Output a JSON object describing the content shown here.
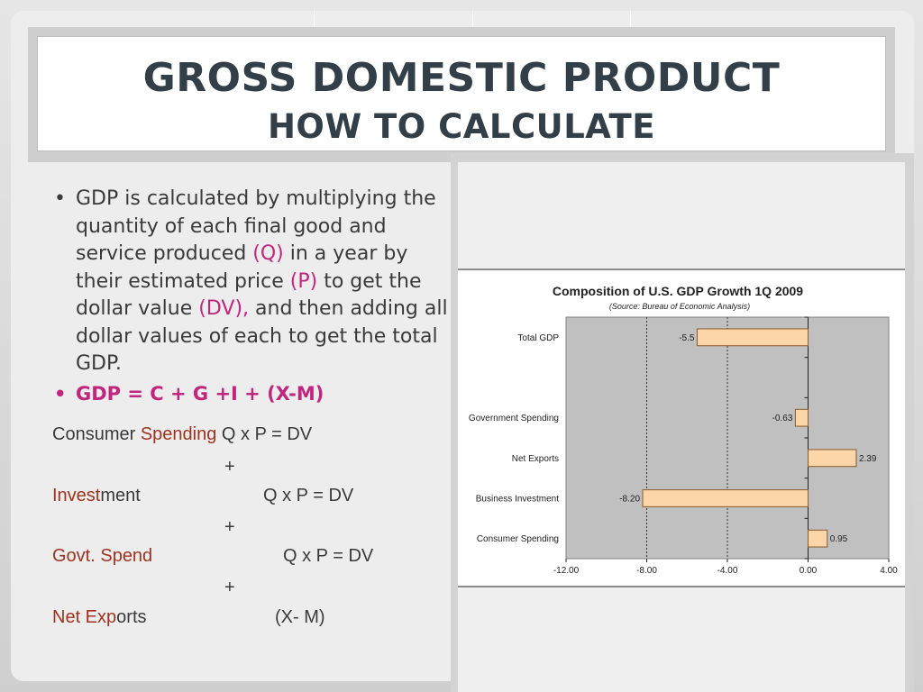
{
  "slide": {
    "title_line1": "GROSS DOMESTIC PRODUCT",
    "title_line2": "HOW TO CALCULATE"
  },
  "text": {
    "bullet1_dot": "•",
    "bullet1_a": "GDP is calculated by multiplying the quantity of each final good and service produced ",
    "bullet1_q": "(Q)",
    "bullet1_b": " in a year by their estimated price ",
    "bullet1_p": "(P)",
    "bullet1_c": " to get the dollar value ",
    "bullet1_dv": "(DV),",
    "bullet1_d": " and then adding all dollar values of each to get the total GDP.",
    "bullet2_dot": "•",
    "formula": "GDP = C + G +I + (X-M)",
    "consumer_a": "Consumer ",
    "consumer_b": "Spending",
    "consumer_eq": " Q x P = DV",
    "plus1": "+",
    "invest_a": "Invest",
    "invest_b": "ment",
    "invest_eq": "Q x P = DV",
    "plus2": "+",
    "govt": "Govt. Spend",
    "govt_eq": "Q x P = DV",
    "plus3": "+",
    "net_a": "Net Exp",
    "net_b": "orts",
    "net_eq": "(X- M)"
  },
  "chart_data": {
    "type": "bar",
    "orientation": "horizontal",
    "title": "Composition of U.S. GDP Growth 1Q 2009",
    "subtitle": "(Source: Bureau of Economic Analysis)",
    "categories": [
      "Total GDP",
      "Government Spending",
      "Net Exports",
      "Business Investment",
      "Consumer Spending"
    ],
    "values": [
      -5.5,
      -0.63,
      2.39,
      -8.2,
      0.95
    ],
    "value_labels": [
      "-5.5",
      "-0.63",
      "2.39",
      "-8.20",
      "0.95"
    ],
    "xlim": [
      -12,
      4
    ],
    "x_ticks": [
      -12,
      -8,
      -4,
      0,
      4
    ],
    "x_tick_labels": [
      "-12.00",
      "-8.00",
      "-4.00",
      "0.00",
      "4.00"
    ],
    "category_positions": [
      0.5,
      2.5,
      3.5,
      4.5,
      5.5
    ],
    "category_slots": 6,
    "gridlines": [
      -8,
      -4
    ],
    "colors": {
      "bar_fill": "#fcd5a8",
      "bar_stroke": "#8a5a2b",
      "plot_bg": "#c0c0c0"
    }
  }
}
